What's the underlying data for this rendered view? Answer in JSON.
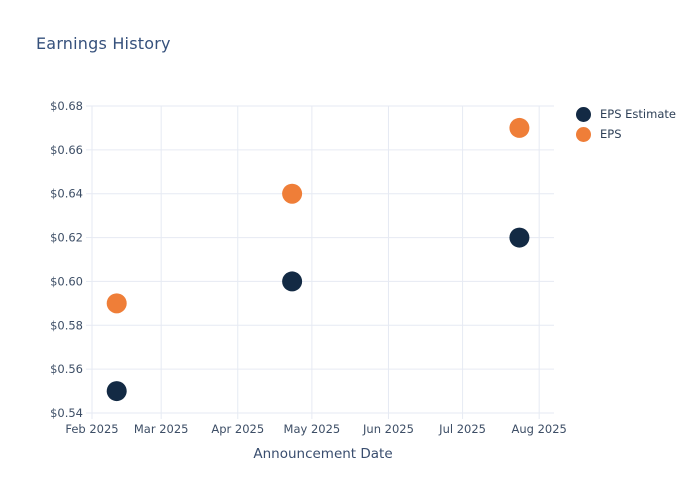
{
  "colors": {
    "background": "#ffffff",
    "grid": "#e6eaf3",
    "tick_text": "#3d4e66",
    "title_text": "#36517c",
    "axis_label_text": "#394d6e",
    "legend_text": "#2e4057"
  },
  "chart_data": {
    "type": "scatter",
    "title": "Earnings History",
    "xlabel": "Announcement Date",
    "ylabel": "",
    "grid": true,
    "legend_position": "right-top",
    "x_range": [
      "2025-02-01",
      "2025-08-07"
    ],
    "ylim": [
      0.54,
      0.68
    ],
    "x_ticks": [
      {
        "date": "2025-02-01",
        "label": "Feb 2025"
      },
      {
        "date": "2025-03-01",
        "label": "Mar 2025"
      },
      {
        "date": "2025-04-01",
        "label": "Apr 2025"
      },
      {
        "date": "2025-05-01",
        "label": "May 2025"
      },
      {
        "date": "2025-06-01",
        "label": "Jun 2025"
      },
      {
        "date": "2025-07-01",
        "label": "Jul 2025"
      },
      {
        "date": "2025-08-01",
        "label": "Aug 2025"
      }
    ],
    "y_ticks": [
      {
        "value": 0.54,
        "label": "$0.54"
      },
      {
        "value": 0.56,
        "label": "$0.56"
      },
      {
        "value": 0.58,
        "label": "$0.58"
      },
      {
        "value": 0.6,
        "label": "$0.60"
      },
      {
        "value": 0.62,
        "label": "$0.62"
      },
      {
        "value": 0.64,
        "label": "$0.64"
      },
      {
        "value": 0.66,
        "label": "$0.66"
      },
      {
        "value": 0.68,
        "label": "$0.68"
      }
    ],
    "series": [
      {
        "name": "EPS Estimate",
        "color": "#132a44",
        "points": [
          {
            "date": "2025-02-11",
            "value": 0.55
          },
          {
            "date": "2025-04-23",
            "value": 0.6
          },
          {
            "date": "2025-07-24",
            "value": 0.62
          }
        ]
      },
      {
        "name": "EPS",
        "color": "#ef7e38",
        "points": [
          {
            "date": "2025-02-11",
            "value": 0.59
          },
          {
            "date": "2025-04-23",
            "value": 0.64
          },
          {
            "date": "2025-07-24",
            "value": 0.67
          }
        ]
      }
    ]
  }
}
